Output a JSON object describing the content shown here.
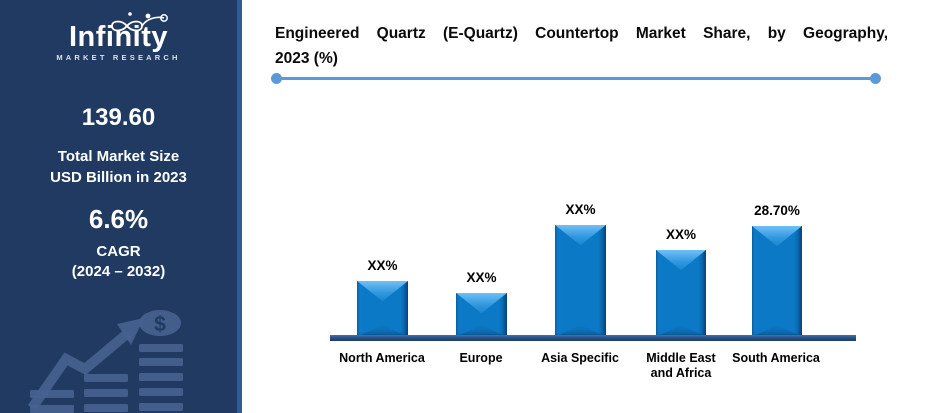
{
  "sidebar": {
    "logo": {
      "name": "Infinity",
      "subtitle": "MARKET RESEARCH"
    },
    "stats": [
      {
        "value": "139.60",
        "label_line1": "Total Market Size",
        "label_line2": "USD Billion in 2023"
      },
      {
        "value": "6.6%",
        "label_line1": "CAGR",
        "label_line2": "(2024 – 2032)"
      }
    ],
    "motif_dollar": "$",
    "colors": {
      "background": "#203A61",
      "edge_strip": "#2F5C95",
      "motif": "#47628F"
    }
  },
  "header": {
    "title_line1": "Engineered Quartz (E-Quartz) Countertop Market Share, by Geography,",
    "title_line2": "2023 (%)",
    "divider_color": "#5B9BD5"
  },
  "chart_data": {
    "type": "bar",
    "title": "Engineered Quartz (E-Quartz) Countertop Market Share, by Geography, 2023 (%)",
    "categories": [
      "North America",
      "Europe",
      "Asia Specific",
      "Middle East and Africa",
      "South America"
    ],
    "bar_labels": [
      "XX%",
      "XX%",
      "XX%",
      "XX%",
      "28.70%"
    ],
    "values_pct_estimated": [
      14.5,
      11.4,
      28.9,
      22.5,
      28.7
    ],
    "xlabel": "",
    "ylabel": "",
    "ylim": [
      0,
      32
    ],
    "legend": "none",
    "gridlines": false,
    "bar_color": "#0C79C6",
    "bar_bevel_color": "#6FC0F4",
    "axis_color": "#2C508A",
    "label_color": "#000000"
  }
}
